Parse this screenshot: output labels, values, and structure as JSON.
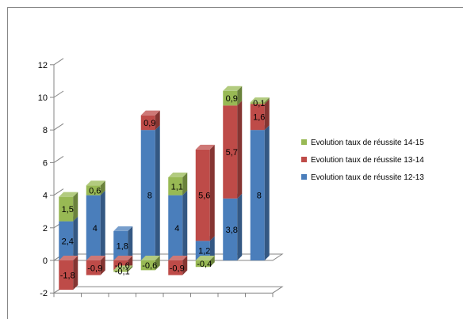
{
  "chart_data": {
    "type": "bar",
    "stacked": true,
    "three_d": true,
    "categories": [
      "",
      "",
      "",
      "",
      "",
      "",
      "",
      ""
    ],
    "yticks": [
      "-2",
      "0",
      "2",
      "4",
      "6",
      "8",
      "10",
      "12"
    ],
    "ylim": [
      -2,
      12
    ],
    "grid": false,
    "legend_position": "right",
    "series": [
      {
        "name": "Evolution taux de réussite 12-13",
        "color": "#4a7ebb",
        "values": [
          2.4,
          4,
          1.8,
          8,
          4,
          1.2,
          3.8,
          8
        ],
        "labels": [
          "2,4",
          "4",
          "1,8",
          "8",
          "4",
          "1,2",
          "3,8",
          "8"
        ]
      },
      {
        "name": "Evolution taux de réussite 13-14",
        "color": "#be4b48",
        "values": [
          -1.8,
          -0.9,
          -0.6,
          0.9,
          -0.9,
          5.6,
          5.7,
          1.6
        ],
        "labels": [
          "-1,8",
          "-0,9",
          "-0,6",
          "0,9",
          "-0,9",
          "5,6",
          "5,7",
          "1,6"
        ]
      },
      {
        "name": "Evolution taux de réussite 14-15",
        "color": "#98b954",
        "values": [
          1.5,
          0.6,
          -0.1,
          -0.6,
          1.1,
          -0.4,
          0.9,
          0.1
        ],
        "labels": [
          "1,5",
          "0,6",
          "-0,1",
          "-0,6",
          "1,1",
          "-0,4",
          "0,9",
          "0,1"
        ]
      }
    ]
  }
}
